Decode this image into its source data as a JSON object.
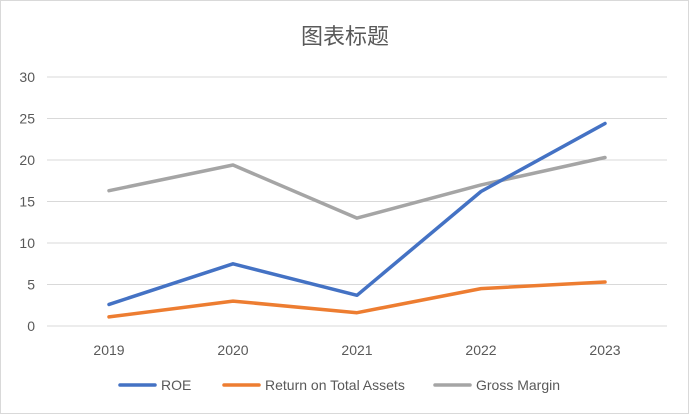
{
  "chart_data": {
    "type": "line",
    "title": "图表标题",
    "categories": [
      "2019",
      "2020",
      "2021",
      "2022",
      "2023"
    ],
    "ylim": [
      0,
      30
    ],
    "yticks": [
      "0",
      "5",
      "10",
      "15",
      "20",
      "25",
      "30"
    ],
    "grid": true,
    "legend_position": "bottom",
    "series": [
      {
        "name": "ROE",
        "color": "#4472C4",
        "values": [
          2.6,
          7.5,
          3.7,
          16.2,
          24.4
        ]
      },
      {
        "name": "Return on Total Assets",
        "color": "#ED7D31",
        "values": [
          1.1,
          3.0,
          1.6,
          4.5,
          5.3
        ]
      },
      {
        "name": "Gross Margin",
        "color": "#A5A5A5",
        "values": [
          16.3,
          19.4,
          13.0,
          17.0,
          20.3
        ]
      }
    ]
  }
}
